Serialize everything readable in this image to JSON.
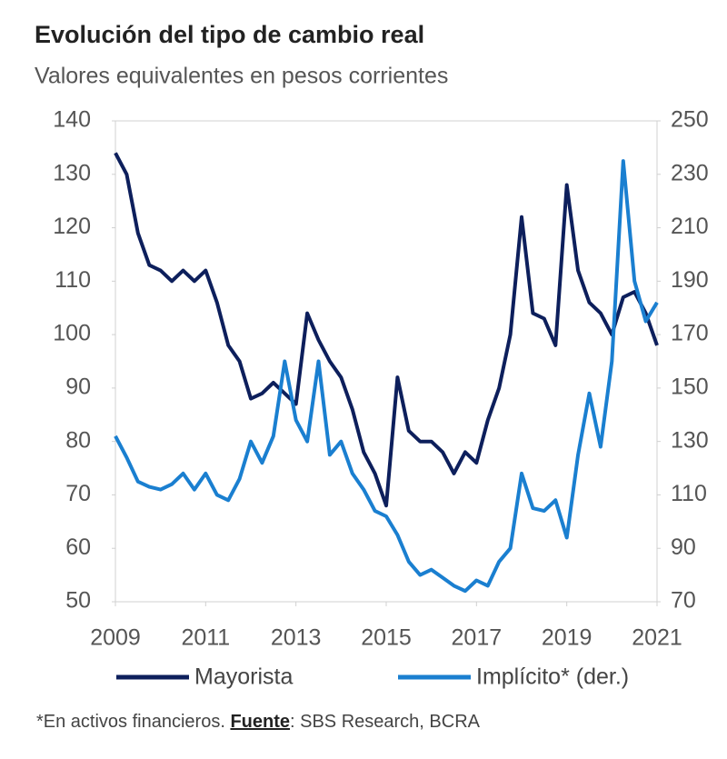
{
  "chart_data": {
    "type": "line",
    "title": "Evolución del tipo de cambio real",
    "subtitle": "Valores equivalentes en pesos corrientes",
    "x": [
      2009,
      2009.25,
      2009.5,
      2009.75,
      2010,
      2010.25,
      2010.5,
      2010.75,
      2011,
      2011.25,
      2011.5,
      2011.75,
      2012,
      2012.25,
      2012.5,
      2012.75,
      2013,
      2013.25,
      2013.5,
      2013.75,
      2014,
      2014.25,
      2014.5,
      2014.75,
      2015,
      2015.25,
      2015.5,
      2015.75,
      2016,
      2016.25,
      2016.5,
      2016.75,
      2017,
      2017.25,
      2017.5,
      2017.75,
      2018,
      2018.25,
      2018.5,
      2018.75,
      2019,
      2019.25,
      2019.5,
      2019.75,
      2020,
      2020.25,
      2020.5,
      2020.75,
      2021
    ],
    "series": [
      {
        "name": "Mayorista",
        "color": "#0d1f5c",
        "values": [
          134,
          130,
          119,
          113,
          112,
          110,
          112,
          110,
          112,
          106,
          98,
          95,
          88,
          89,
          91,
          89,
          87,
          104,
          99,
          95,
          92,
          86,
          78,
          74,
          68,
          92,
          82,
          80,
          80,
          78,
          74,
          78,
          76,
          84,
          90,
          100,
          122,
          104,
          103,
          98,
          128,
          112,
          106,
          104,
          100,
          107,
          108,
          104,
          98
        ]
      },
      {
        "name": "Implícito* (der.)",
        "color": "#1a7fd0",
        "axis": "y2",
        "values": [
          132,
          124,
          115,
          113,
          112,
          114,
          118,
          112,
          118,
          110,
          108,
          116,
          130,
          122,
          132,
          160,
          138,
          130,
          160,
          125,
          130,
          118,
          112,
          104,
          102,
          95,
          85,
          80,
          82,
          79,
          76,
          74,
          78,
          76,
          85,
          90,
          118,
          105,
          104,
          108,
          94,
          125,
          148,
          128,
          160,
          235,
          190,
          175,
          182
        ]
      }
    ],
    "xlim": [
      2009,
      2021
    ],
    "xticks": [
      2009,
      2011,
      2013,
      2015,
      2017,
      2019,
      2021
    ],
    "ylim": [
      50,
      140
    ],
    "yticks": [
      50,
      60,
      70,
      80,
      90,
      100,
      110,
      120,
      130,
      140
    ],
    "y2lim": [
      70,
      250
    ],
    "y2ticks": [
      70,
      90,
      110,
      130,
      150,
      170,
      190,
      210,
      230,
      250
    ],
    "legend": "bottom",
    "note": {
      "text": "*En activos financieros.",
      "source_label": "Fuente",
      "source": ": SBS Research, BCRA"
    }
  }
}
